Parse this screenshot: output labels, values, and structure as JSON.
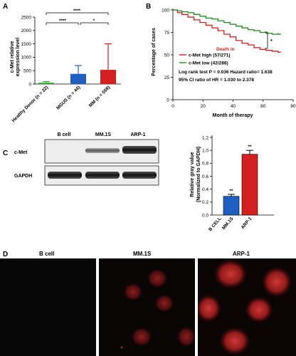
{
  "panels": {
    "a": {
      "letter": "A",
      "ylabel_line1": "c-Met relative",
      "ylabel_line2": "expression level",
      "yticks": [
        "0",
        "500",
        "1000",
        "1500",
        "2000",
        "2500"
      ],
      "sig": [
        "****",
        "****",
        "*"
      ],
      "colors": {
        "healthy": "#33aa33",
        "mgus": "#1f5fbf",
        "mm": "#d42020"
      }
    },
    "b": {
      "letter": "B",
      "ylabel": "Percentage of cases",
      "xlabel": "Month of therapy",
      "yticks": [
        "0",
        "25",
        "50",
        "75",
        "100"
      ],
      "xticks": [
        "0",
        "20",
        "40",
        "60",
        "80"
      ],
      "legend_high": "c-Met high (57/271)",
      "legend_low": "c-Met low (42/288)",
      "death_label": "Death in",
      "stat_line1": "Log rank test P = 0.036  Hazard ratio= 1.638",
      "stat_line2": "95% CI ratio of HR = 1.030 to 2.378",
      "sig": "*",
      "colors": {
        "high": "#d42020",
        "low": "#1e8a1e"
      }
    },
    "c": {
      "letter": "C",
      "blot_headers": [
        "B cell",
        "MM.1S",
        "ARP-1"
      ],
      "blot_rows": [
        "c-Met",
        "GAPDH"
      ],
      "ylabel_line1": "Relative gray value",
      "ylabel_line2": "(Normalized to GAPDH)",
      "yticks": [
        "0.0",
        "0.2",
        "0.4",
        "0.6",
        "0.8",
        "1.0",
        "1.2"
      ],
      "sig": [
        "**",
        "**"
      ],
      "colors": {
        "bcell": "#888888",
        "mm1s": "#1f5fbf",
        "arp1": "#d42020"
      }
    },
    "d": {
      "letter": "D",
      "labels": [
        "B cell",
        "MM.1S",
        "ARP-1"
      ]
    }
  },
  "chart_data": [
    {
      "type": "bar",
      "categories": [
        "Healthy Donor (n = 22)",
        "MGUS (n = 44)",
        "MM (n = 559)"
      ],
      "values": [
        50,
        380,
        530
      ],
      "errors": [
        40,
        310,
        970
      ],
      "ylim": [
        0,
        2500
      ],
      "ylabel": "c-Met relative expression level"
    },
    {
      "type": "line",
      "xlabel": "Month of therapy",
      "ylabel": "Percentage of cases",
      "xlim": [
        0,
        80
      ],
      "ylim": [
        0,
        100
      ],
      "series": [
        {
          "name": "c-Met high (57/271)",
          "x": [
            0,
            3,
            6,
            10,
            14,
            18,
            22,
            26,
            30,
            34,
            38,
            42,
            46,
            50,
            54,
            58,
            62,
            66,
            70,
            72
          ],
          "y": [
            100,
            97,
            95,
            92,
            89,
            86,
            83,
            80,
            77,
            73,
            70,
            66,
            63,
            61,
            58,
            56,
            55,
            54,
            53,
            53
          ]
        },
        {
          "name": "c-Met low (42/288)",
          "x": [
            0,
            3,
            6,
            10,
            14,
            18,
            22,
            26,
            30,
            34,
            38,
            42,
            46,
            50,
            54,
            58,
            62,
            66,
            70,
            72
          ],
          "y": [
            100,
            99,
            98,
            97,
            95,
            93,
            91,
            90,
            88,
            86,
            84,
            82,
            80,
            78,
            77,
            75,
            74,
            73,
            73,
            73
          ]
        }
      ]
    },
    {
      "type": "bar",
      "categories": [
        "B CELL",
        "MM.1S",
        "ARP-1"
      ],
      "values": [
        0.0,
        0.29,
        0.94
      ],
      "errors": [
        0.0,
        0.03,
        0.06
      ],
      "ylim": [
        0,
        1.2
      ],
      "ylabel": "Relative gray value (Normalized to GAPDH)"
    }
  ]
}
